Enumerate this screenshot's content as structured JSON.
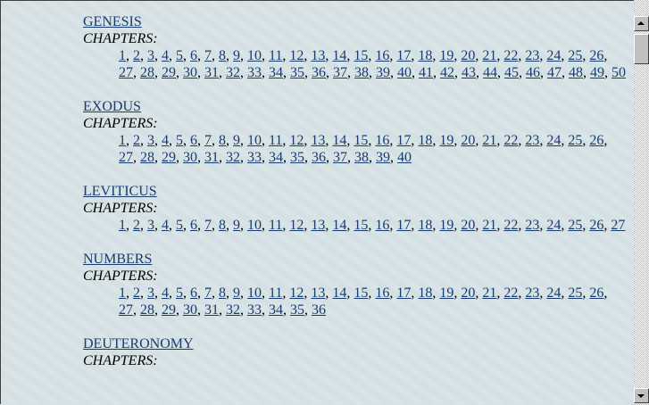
{
  "chapters_label": "CHAPTERS:",
  "books": [
    {
      "name": "GENESIS",
      "chapters": [
        "1",
        "2",
        "3",
        "4",
        "5",
        "6",
        "7",
        "8",
        "9",
        "10",
        "11",
        "12",
        "13",
        "14",
        "15",
        "16",
        "17",
        "18",
        "19",
        "20",
        "21",
        "22",
        "23",
        "24",
        "25",
        "26",
        "27",
        "28",
        "29",
        "30",
        "31",
        "32",
        "33",
        "34",
        "35",
        "36",
        "37",
        "38",
        "39",
        "40",
        "41",
        "42",
        "43",
        "44",
        "45",
        "46",
        "47",
        "48",
        "49",
        "50"
      ]
    },
    {
      "name": "EXODUS",
      "chapters": [
        "1",
        "2",
        "3",
        "4",
        "5",
        "6",
        "7",
        "8",
        "9",
        "10",
        "11",
        "12",
        "13",
        "14",
        "15",
        "16",
        "17",
        "18",
        "19",
        "20",
        "21",
        "22",
        "23",
        "24",
        "25",
        "26",
        "27",
        "28",
        "29",
        "30",
        "31",
        "32",
        "33",
        "34",
        "35",
        "36",
        "37",
        "38",
        "39",
        "40"
      ]
    },
    {
      "name": "LEVITICUS",
      "chapters": [
        "1",
        "2",
        "3",
        "4",
        "5",
        "6",
        "7",
        "8",
        "9",
        "10",
        "11",
        "12",
        "13",
        "14",
        "15",
        "16",
        "17",
        "18",
        "19",
        "20",
        "21",
        "22",
        "23",
        "24",
        "25",
        "26",
        "27"
      ]
    },
    {
      "name": "NUMBERS",
      "chapters": [
        "1",
        "2",
        "3",
        "4",
        "5",
        "6",
        "7",
        "8",
        "9",
        "10",
        "11",
        "12",
        "13",
        "14",
        "15",
        "16",
        "17",
        "18",
        "19",
        "20",
        "21",
        "22",
        "23",
        "24",
        "25",
        "26",
        "27",
        "28",
        "29",
        "30",
        "31",
        "32",
        "33",
        "34",
        "35",
        "36"
      ]
    },
    {
      "name": "DEUTERONOMY",
      "chapters": []
    }
  ],
  "colors": {
    "link": "#183c6e",
    "background": "#d6e1e5"
  }
}
